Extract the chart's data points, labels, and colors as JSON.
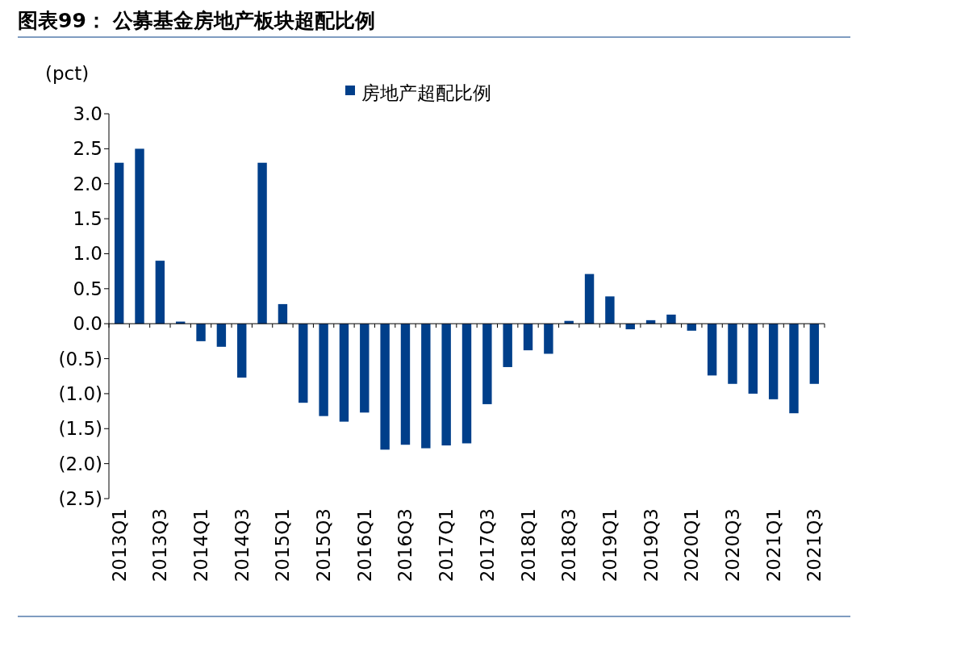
{
  "chart_data": {
    "type": "bar",
    "title": "图表99：  公募基金房地产板块超配比例",
    "ylabel": "(pct)",
    "categories": [
      "2013Q1",
      null,
      "2013Q3",
      null,
      "2014Q1",
      null,
      "2014Q3",
      null,
      "2015Q1",
      null,
      "2015Q3",
      null,
      "2016Q1",
      null,
      "2016Q3",
      null,
      "2017Q1",
      null,
      "2017Q3",
      null,
      "2018Q1",
      null,
      "2018Q3",
      null,
      "2019Q1",
      null,
      "2019Q3",
      null,
      "2020Q1",
      null,
      "2020Q3",
      null,
      "2021Q1",
      null,
      "2021Q3"
    ],
    "series": [
      {
        "name": "房地产超配比例",
        "color": "#003f8a",
        "values": [
          2.3,
          2.5,
          0.9,
          0.03,
          -0.25,
          -0.33,
          -0.77,
          2.3,
          0.28,
          -1.13,
          -1.32,
          -1.4,
          -1.27,
          -1.8,
          -1.73,
          -1.78,
          -1.74,
          -1.71,
          -1.15,
          -0.62,
          -0.38,
          -0.43,
          0.04,
          0.71,
          0.39,
          -0.08,
          0.05,
          0.13,
          -0.1,
          -0.74,
          -0.86,
          -1.0,
          -1.08,
          -1.28,
          -0.86
        ]
      }
    ],
    "ylim": [
      -2.5,
      3.0
    ],
    "yticks": [
      {
        "value": 3.0,
        "label": "3.0"
      },
      {
        "value": 2.5,
        "label": "2.5"
      },
      {
        "value": 2.0,
        "label": "2.0"
      },
      {
        "value": 1.5,
        "label": "1.5"
      },
      {
        "value": 1.0,
        "label": "1.0"
      },
      {
        "value": 0.5,
        "label": "0.5"
      },
      {
        "value": 0.0,
        "label": "0.0"
      },
      {
        "value": -0.5,
        "label": "(0.5)"
      },
      {
        "value": -1.0,
        "label": "(1.0)"
      },
      {
        "value": -1.5,
        "label": "(1.5)"
      },
      {
        "value": -2.0,
        "label": "(2.0)"
      },
      {
        "value": -2.5,
        "label": "(2.5)"
      }
    ],
    "legend": "top"
  }
}
